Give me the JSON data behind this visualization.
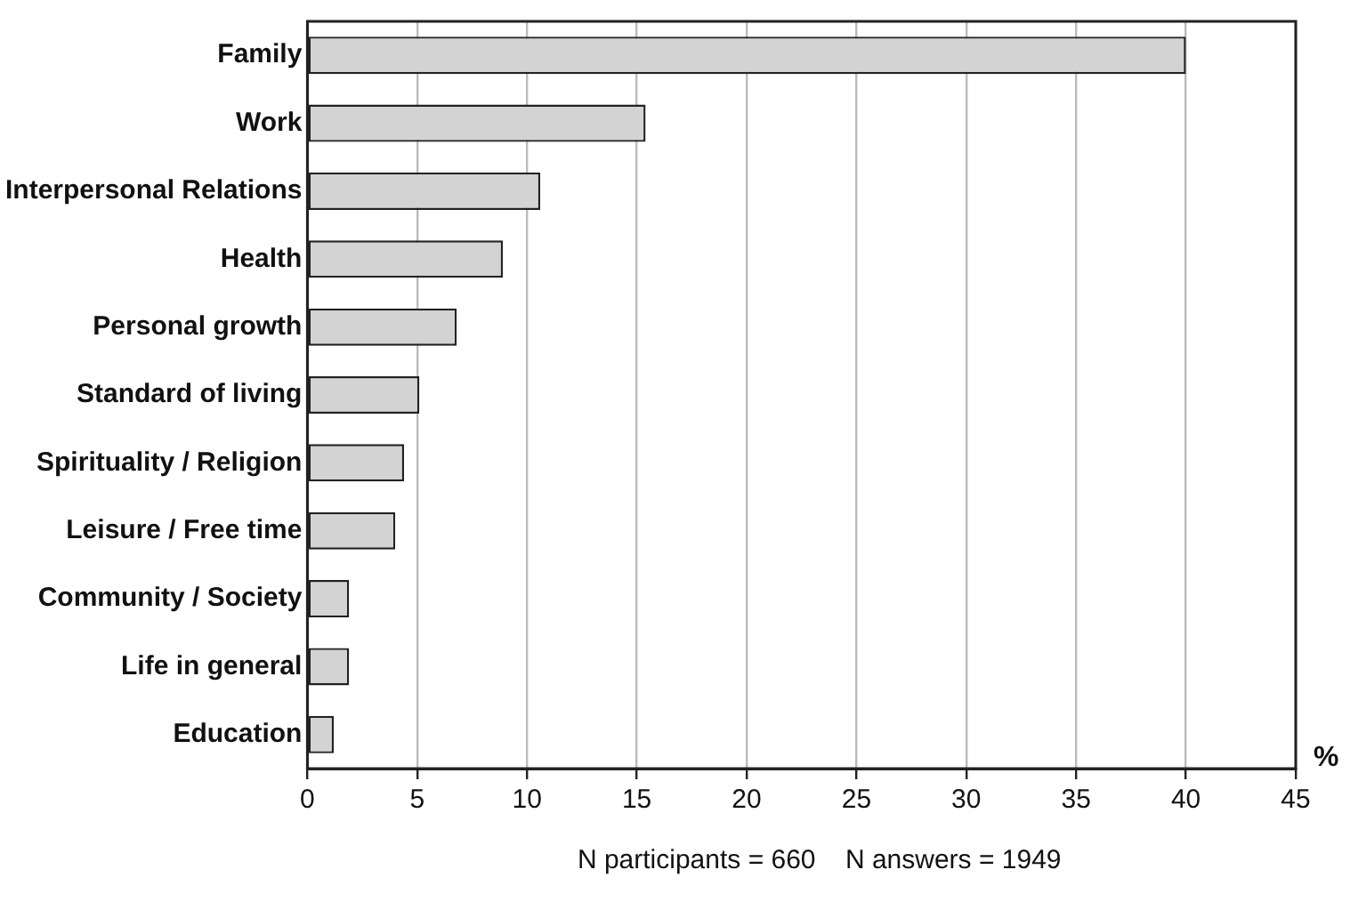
{
  "chart_data": {
    "type": "bar",
    "orientation": "horizontal",
    "categories": [
      "Family",
      "Work",
      "Interpersonal Relations",
      "Health",
      "Personal growth",
      "Standard of living",
      "Spirituality / Religion",
      "Leisure / Free time",
      "Community / Society",
      "Life in general",
      "Education"
    ],
    "values": [
      40,
      15.4,
      10.6,
      8.9,
      6.8,
      5.1,
      4.4,
      4.0,
      1.9,
      1.9,
      1.2
    ],
    "color": "#d3d3d3",
    "xlim": [
      0,
      45
    ],
    "xticks": [
      0,
      5,
      10,
      15,
      20,
      25,
      30,
      35,
      40,
      45
    ],
    "xlabel": "%",
    "annotations": [
      "N participants = 660    N answers = 1949"
    ],
    "grid": "x",
    "legend": false
  }
}
